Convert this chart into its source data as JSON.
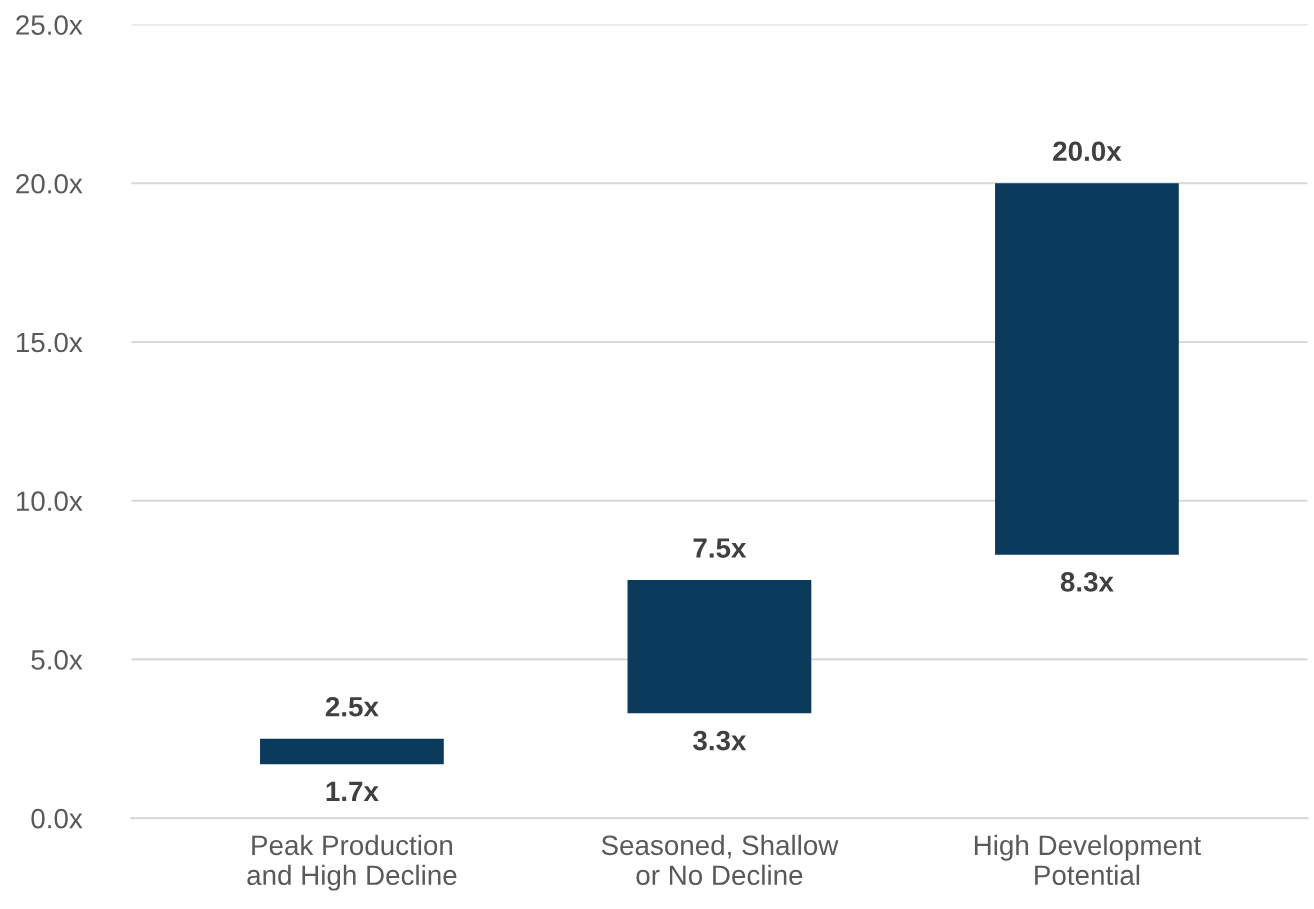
{
  "chart_data": {
    "type": "bar",
    "categories": [
      "Peak Production\nand High Decline",
      "Seasoned, Shallow\nor No Decline",
      "High Development\nPotential"
    ],
    "base": [
      1.7,
      3.3,
      8.3
    ],
    "values": [
      0.8,
      4.2,
      11.7
    ],
    "color": "#0a3a5c",
    "ylim": [
      0,
      25
    ],
    "yticks": [
      {
        "value": 0,
        "label": "0.0x"
      },
      {
        "value": 5,
        "label": "5.0x"
      },
      {
        "value": 10,
        "label": "10.0x"
      },
      {
        "value": 15,
        "label": "15.0x"
      },
      {
        "value": 20,
        "label": "20.0x"
      },
      {
        "value": 25,
        "label": "25.0x"
      }
    ],
    "grid": "y",
    "annotations": [
      {
        "text": "2.5x",
        "x": "Peak Production\nand High Decline",
        "y": 2.5
      },
      {
        "text": "1.7x",
        "x": "Peak Production\nand High Decline",
        "y": 1.7
      },
      {
        "text": "7.5x",
        "x": "Seasoned, Shallow\nor No Decline",
        "y": 7.5
      },
      {
        "text": "3.3x",
        "x": "Seasoned, Shallow\nor No Decline",
        "y": 3.3
      },
      {
        "text": "20.0x",
        "x": "High Development\nPotential",
        "y": 20.0
      },
      {
        "text": "8.3x",
        "x": "High Development\nPotential",
        "y": 8.3
      }
    ]
  }
}
